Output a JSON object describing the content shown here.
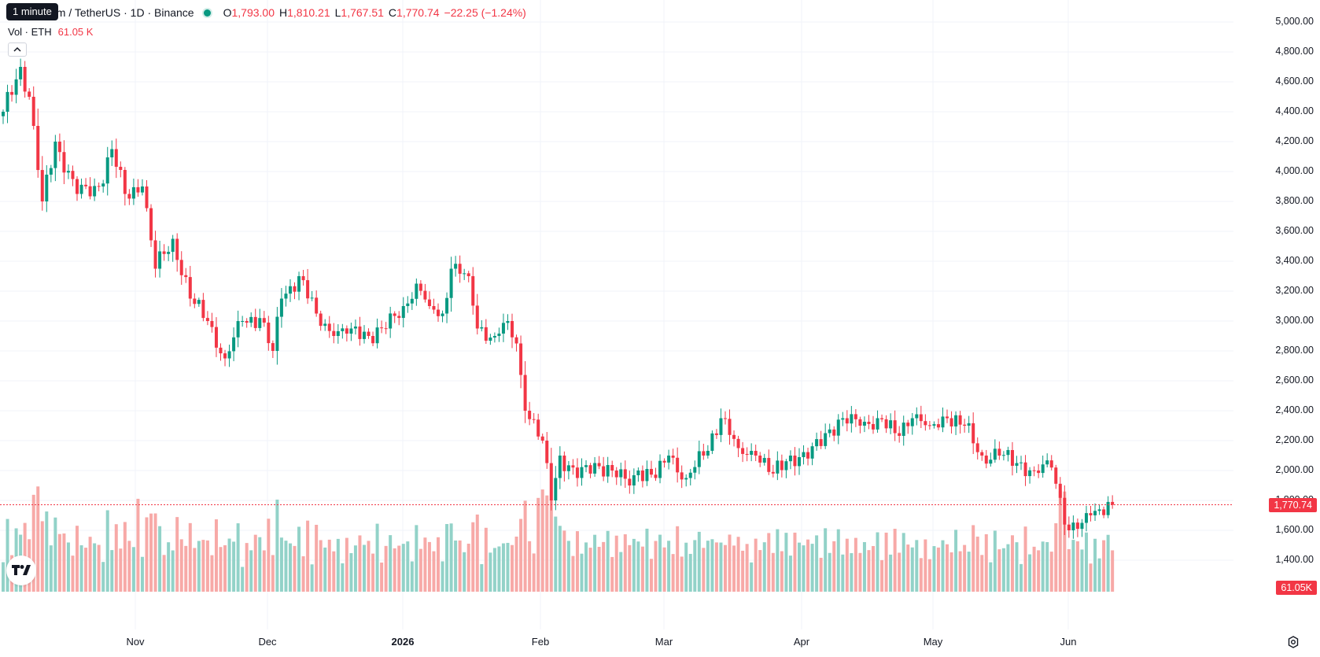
{
  "tooltip": "1 minute",
  "legend": {
    "symbol": "um / TetherUS · 1D · Binance",
    "open_key": "O",
    "open": "1,793.00",
    "high_key": "H",
    "high": "1,810.21",
    "low_key": "L",
    "low": "1,767.51",
    "close_key": "C",
    "close": "1,770.74",
    "change": "−22.25 (−1.24%)"
  },
  "volume_legend": {
    "label": "Vol · ETH",
    "value": "61.05 K"
  },
  "price_axis": {
    "ticks": [
      "5,000.00",
      "4,800.00",
      "4,600.00",
      "4,400.00",
      "4,200.00",
      "4,000.00",
      "3,800.00",
      "3,600.00",
      "3,400.00",
      "3,200.00",
      "3,000.00",
      "2,800.00",
      "2,600.00",
      "2,400.00",
      "2,200.00",
      "2,000.00",
      "1,800.00",
      "1,600.00",
      "1,400.00"
    ],
    "last_price_tag": "1,770.74",
    "volume_tag": "61.05K"
  },
  "time_axis": [
    {
      "label": "Nov",
      "bold": false
    },
    {
      "label": "Dec",
      "bold": false
    },
    {
      "label": "2026",
      "bold": true
    },
    {
      "label": "Feb",
      "bold": false
    },
    {
      "label": "Mar",
      "bold": false
    },
    {
      "label": "Apr",
      "bold": false
    },
    {
      "label": "May",
      "bold": false
    },
    {
      "label": "Jun",
      "bold": false
    }
  ],
  "colors": {
    "up": "#089981",
    "down": "#f23645",
    "up_vol": "#92d2c8",
    "down_vol": "#f7a9a7",
    "grid": "#f0f3fa"
  },
  "icons": {
    "logo": "tradingview-logo-icon",
    "settings": "settings-gear-icon",
    "collapse": "chevron-up-icon"
  },
  "chart_data": {
    "type": "candlestick",
    "title": "",
    "xlabel": "",
    "ylabel": "",
    "ylim": [
      1300,
      5050
    ],
    "grid": true,
    "last_price": 1770.74,
    "anchors": [
      {
        "i": 0,
        "p": 4400
      },
      {
        "i": 4,
        "p": 4700
      },
      {
        "i": 6,
        "p": 4500
      },
      {
        "i": 9,
        "p": 3800
      },
      {
        "i": 12,
        "p": 4200
      },
      {
        "i": 17,
        "p": 3850
      },
      {
        "i": 22,
        "p": 3900
      },
      {
        "i": 25,
        "p": 4150
      },
      {
        "i": 28,
        "p": 3850
      },
      {
        "i": 32,
        "p": 3900
      },
      {
        "i": 35,
        "p": 3350
      },
      {
        "i": 39,
        "p": 3550
      },
      {
        "i": 43,
        "p": 3150
      },
      {
        "i": 47,
        "p": 3000
      },
      {
        "i": 51,
        "p": 2750
      },
      {
        "i": 55,
        "p": 3000
      },
      {
        "i": 59,
        "p": 3020
      },
      {
        "i": 62,
        "p": 2800
      },
      {
        "i": 64,
        "p": 3150
      },
      {
        "i": 68,
        "p": 3300
      },
      {
        "i": 72,
        "p": 3050
      },
      {
        "i": 76,
        "p": 2900
      },
      {
        "i": 80,
        "p": 2950
      },
      {
        "i": 84,
        "p": 2900
      },
      {
        "i": 88,
        "p": 2950
      },
      {
        "i": 92,
        "p": 3100
      },
      {
        "i": 95,
        "p": 3250
      },
      {
        "i": 98,
        "p": 3100
      },
      {
        "i": 101,
        "p": 3050
      },
      {
        "i": 103,
        "p": 3350
      },
      {
        "i": 107,
        "p": 3300
      },
      {
        "i": 109,
        "p": 2950
      },
      {
        "i": 113,
        "p": 2900
      },
      {
        "i": 116,
        "p": 3000
      },
      {
        "i": 118,
        "p": 2850
      },
      {
        "i": 120,
        "p": 2400
      },
      {
        "i": 124,
        "p": 2200
      },
      {
        "i": 126,
        "p": 1800
      },
      {
        "i": 128,
        "p": 2100
      },
      {
        "i": 132,
        "p": 1950
      },
      {
        "i": 136,
        "p": 2050
      },
      {
        "i": 140,
        "p": 2000
      },
      {
        "i": 144,
        "p": 1900
      },
      {
        "i": 146,
        "p": 2000
      },
      {
        "i": 150,
        "p": 1950
      },
      {
        "i": 153,
        "p": 2100
      },
      {
        "i": 157,
        "p": 1950
      },
      {
        "i": 161,
        "p": 2100
      },
      {
        "i": 165,
        "p": 2350
      },
      {
        "i": 169,
        "p": 2150
      },
      {
        "i": 173,
        "p": 2100
      },
      {
        "i": 177,
        "p": 1980
      },
      {
        "i": 181,
        "p": 2100
      },
      {
        "i": 185,
        "p": 2080
      },
      {
        "i": 189,
        "p": 2250
      },
      {
        "i": 193,
        "p": 2350
      },
      {
        "i": 197,
        "p": 2300
      },
      {
        "i": 201,
        "p": 2350
      },
      {
        "i": 205,
        "p": 2250
      },
      {
        "i": 209,
        "p": 2350
      },
      {
        "i": 213,
        "p": 2300
      },
      {
        "i": 217,
        "p": 2350
      },
      {
        "i": 221,
        "p": 2300
      },
      {
        "i": 225,
        "p": 2100
      },
      {
        "i": 229,
        "p": 2100
      },
      {
        "i": 233,
        "p": 2050
      },
      {
        "i": 237,
        "p": 2000
      },
      {
        "i": 241,
        "p": 2020
      },
      {
        "i": 245,
        "p": 1600
      },
      {
        "i": 248,
        "p": 1650
      },
      {
        "i": 250,
        "p": 1700
      },
      {
        "i": 254,
        "p": 1790
      },
      {
        "i": 255,
        "p": 1770
      }
    ],
    "volume_spikes": [
      7,
      31,
      123,
      124,
      125,
      126,
      243,
      244
    ]
  }
}
